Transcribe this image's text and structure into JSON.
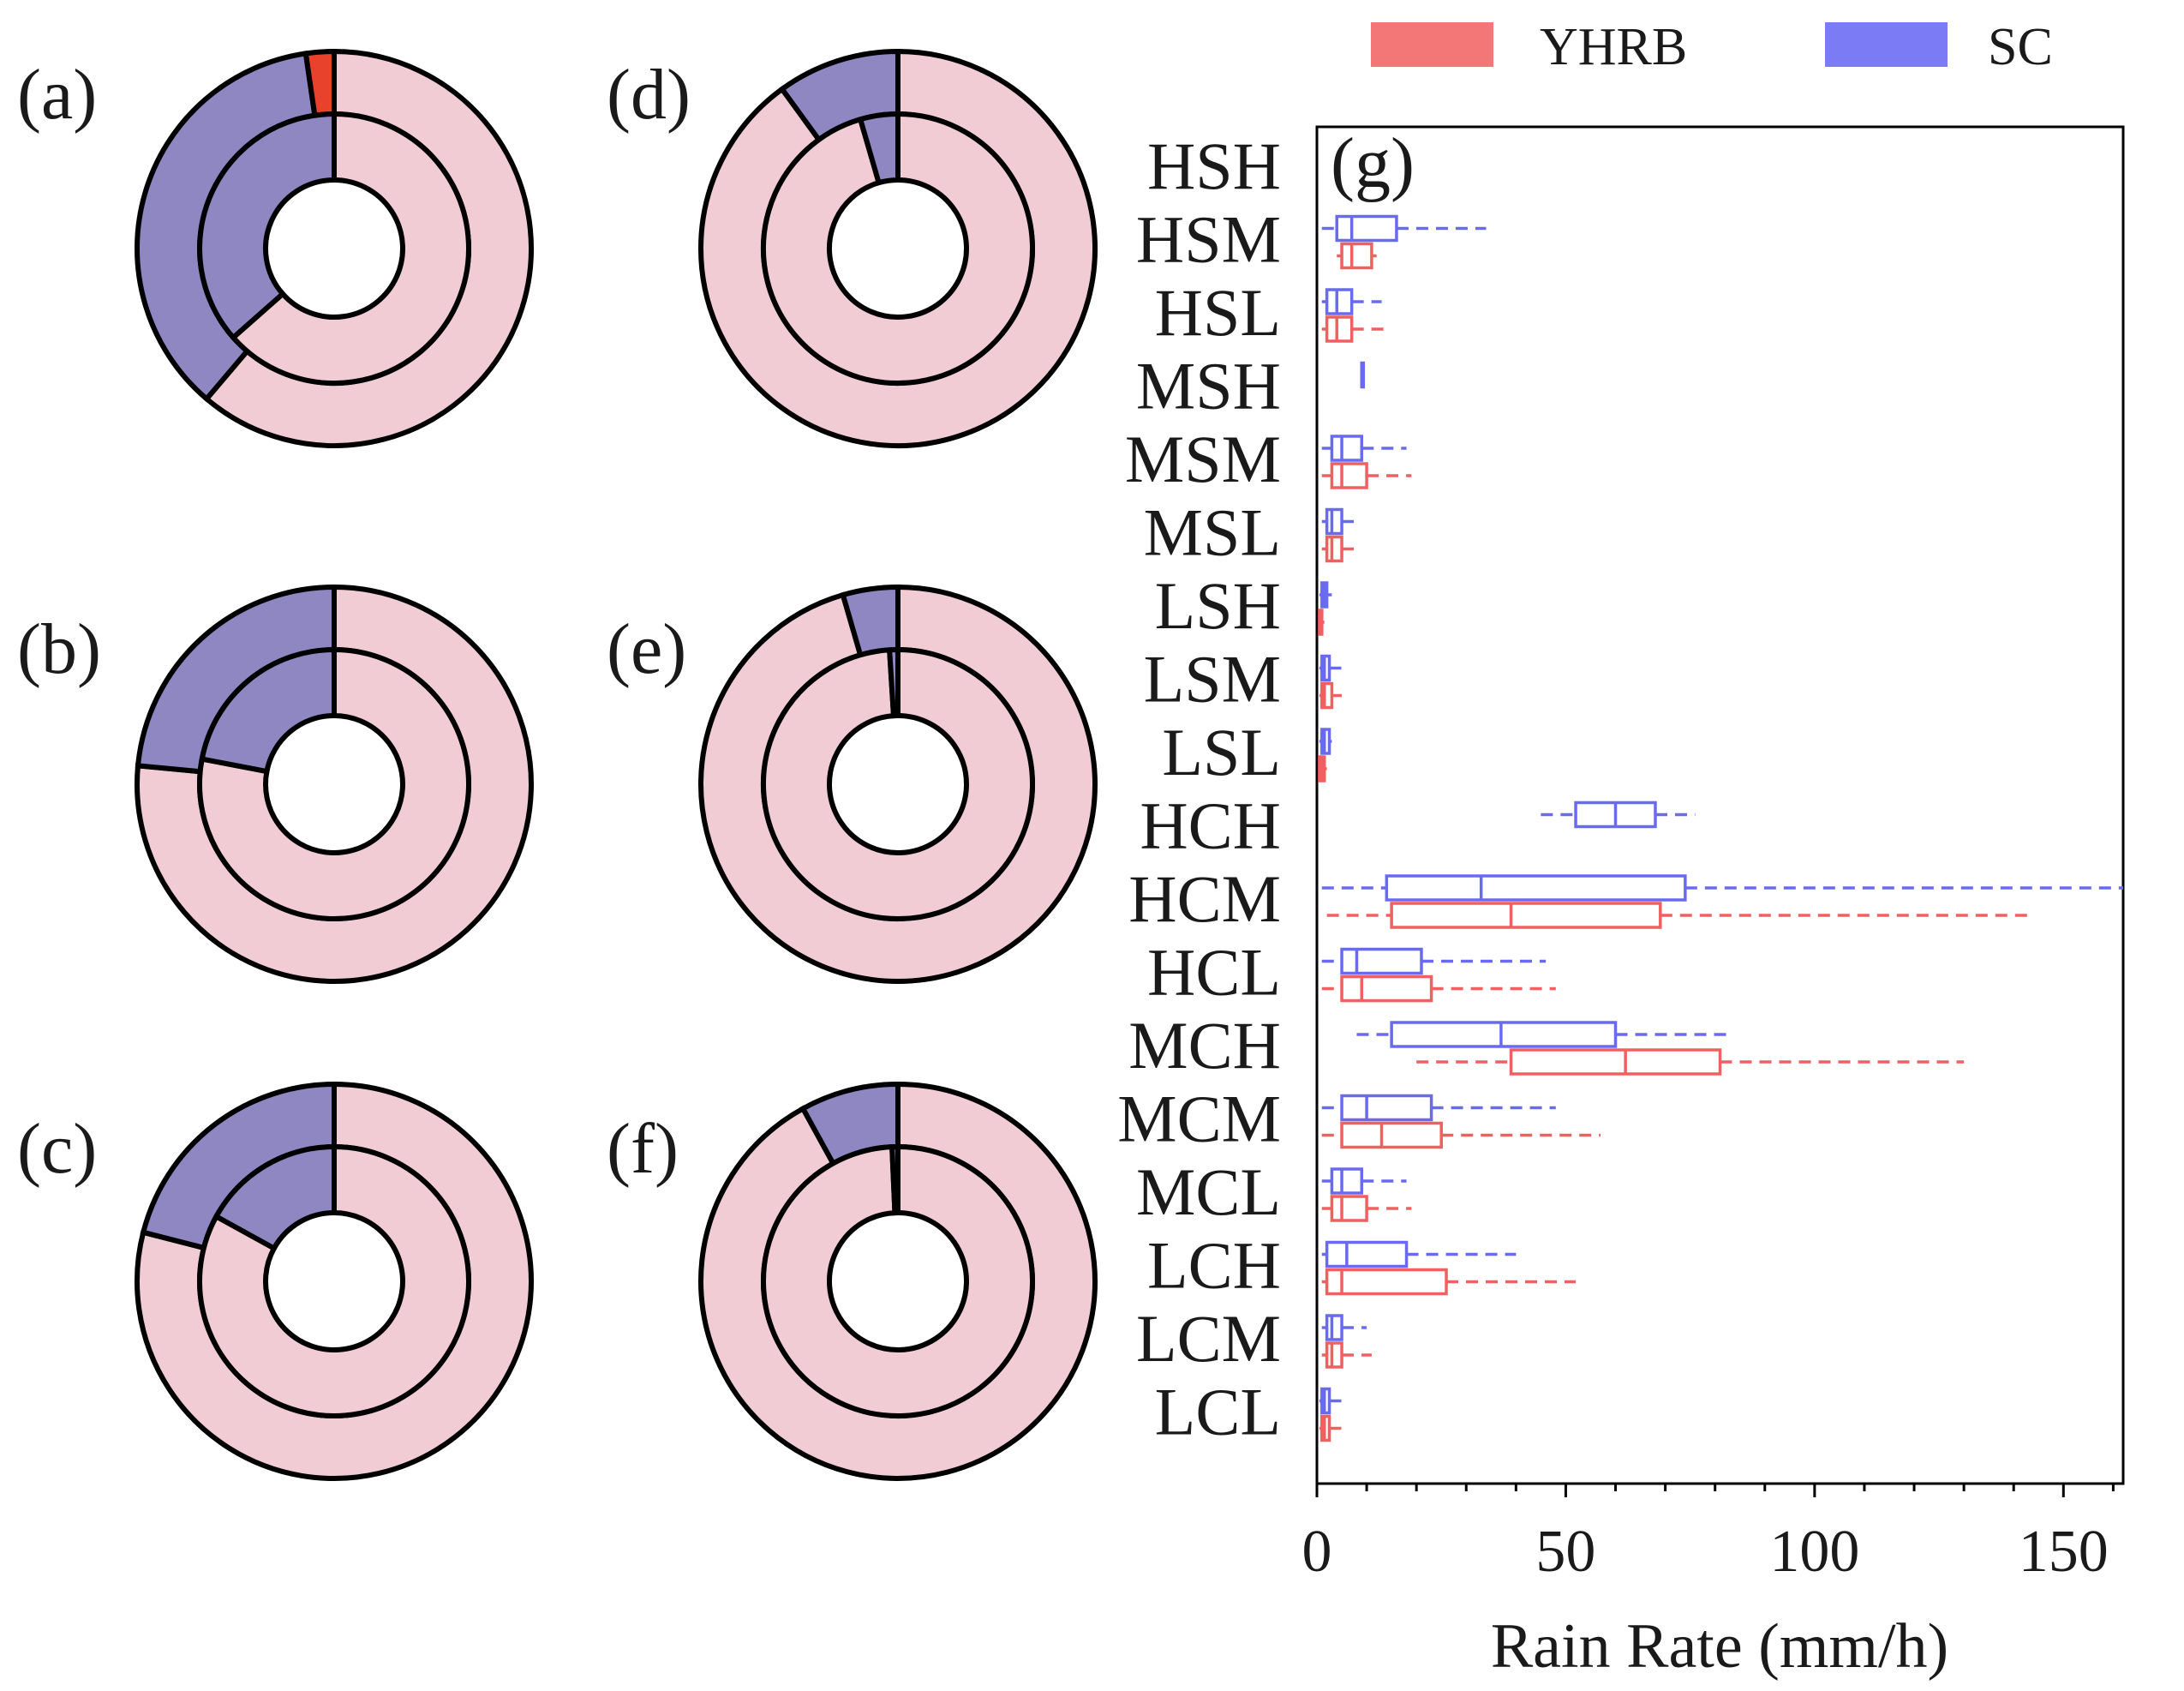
{
  "colors": {
    "yhrb_edge": "#f06060",
    "sc_edge": "#6a6af0",
    "yhrb_legend": "#f47777",
    "sc_legend": "#7b7cf5",
    "ring_pink": "#f1ccd5",
    "ring_purple": "#8e87c2",
    "ring_red": "#e8412c",
    "edge_black": "#000000"
  },
  "legend": [
    {
      "label": "YHRB",
      "color": "#f47777"
    },
    {
      "label": "SC",
      "color": "#7b7cf5"
    }
  ],
  "chart_data": [
    {
      "type": "pie",
      "panel": "(a)",
      "rings": [
        {
          "ring": "outer",
          "slices": [
            {
              "name": "pink",
              "value": 0.612,
              "color": "#f1ccd5"
            },
            {
              "name": "purple",
              "value": 0.365,
              "color": "#8e87c2"
            },
            {
              "name": "red",
              "value": 0.023,
              "color": "#e8412c"
            }
          ]
        },
        {
          "ring": "inner",
          "slices": [
            {
              "name": "pink",
              "value": 0.635,
              "color": "#f1ccd5"
            },
            {
              "name": "purple",
              "value": 0.365,
              "color": "#8e87c2"
            }
          ]
        }
      ]
    },
    {
      "type": "pie",
      "panel": "(b)",
      "rings": [
        {
          "ring": "outer",
          "slices": [
            {
              "name": "pink",
              "value": 0.765,
              "color": "#f1ccd5"
            },
            {
              "name": "purple",
              "value": 0.235,
              "color": "#8e87c2"
            }
          ]
        },
        {
          "ring": "inner",
          "slices": [
            {
              "name": "pink",
              "value": 0.78,
              "color": "#f1ccd5"
            },
            {
              "name": "purple",
              "value": 0.22,
              "color": "#8e87c2"
            }
          ]
        }
      ]
    },
    {
      "type": "pie",
      "panel": "(c)",
      "rings": [
        {
          "ring": "outer",
          "slices": [
            {
              "name": "pink",
              "value": 0.79,
              "color": "#f1ccd5"
            },
            {
              "name": "purple",
              "value": 0.21,
              "color": "#8e87c2"
            }
          ]
        },
        {
          "ring": "inner",
          "slices": [
            {
              "name": "pink",
              "value": 0.83,
              "color": "#f1ccd5"
            },
            {
              "name": "purple",
              "value": 0.17,
              "color": "#8e87c2"
            }
          ]
        }
      ]
    },
    {
      "type": "pie",
      "panel": "(d)",
      "rings": [
        {
          "ring": "outer",
          "slices": [
            {
              "name": "pink",
              "value": 0.9,
              "color": "#f1ccd5"
            },
            {
              "name": "purple",
              "value": 0.1,
              "color": "#8e87c2"
            }
          ]
        },
        {
          "ring": "inner",
          "slices": [
            {
              "name": "pink",
              "value": 0.955,
              "color": "#f1ccd5"
            },
            {
              "name": "purple",
              "value": 0.045,
              "color": "#8e87c2"
            }
          ]
        }
      ]
    },
    {
      "type": "pie",
      "panel": "(e)",
      "rings": [
        {
          "ring": "outer",
          "slices": [
            {
              "name": "pink",
              "value": 0.955,
              "color": "#f1ccd5"
            },
            {
              "name": "purple",
              "value": 0.045,
              "color": "#8e87c2"
            }
          ]
        },
        {
          "ring": "inner",
          "slices": [
            {
              "name": "pink",
              "value": 0.99,
              "color": "#f1ccd5"
            },
            {
              "name": "purple",
              "value": 0.01,
              "color": "#8e87c2"
            }
          ]
        }
      ]
    },
    {
      "type": "pie",
      "panel": "(f)",
      "rings": [
        {
          "ring": "outer",
          "slices": [
            {
              "name": "pink",
              "value": 0.92,
              "color": "#f1ccd5"
            },
            {
              "name": "purple",
              "value": 0.08,
              "color": "#8e87c2"
            }
          ]
        },
        {
          "ring": "inner",
          "slices": [
            {
              "name": "pink",
              "value": 0.993,
              "color": "#f1ccd5"
            },
            {
              "name": "purple",
              "value": 0.007,
              "color": "#8e87c2"
            }
          ]
        }
      ]
    },
    {
      "type": "boxplot",
      "panel": "(g)",
      "orientation": "horizontal",
      "xlabel": "Rain Rate (mm/h)",
      "xlim": [
        0,
        162
      ],
      "xticks": [
        0,
        50,
        100,
        150
      ],
      "xtick_labels": [
        "0",
        "50",
        "100",
        "150"
      ],
      "categories": [
        "HSH",
        "HSM",
        "HSL",
        "MSH",
        "MSM",
        "MSL",
        "LSH",
        "LSM",
        "LSL",
        "HCH",
        "HCM",
        "HCL",
        "MCH",
        "MCM",
        "MCL",
        "LCH",
        "LCM",
        "LCL"
      ],
      "series": [
        {
          "name": "SC",
          "color": "#6a6af0",
          "boxes": [
            null,
            {
              "whislo": 1,
              "q1": 4,
              "med": 7,
              "q3": 16,
              "whishi": 34
            },
            {
              "whislo": 1,
              "q1": 2,
              "med": 4,
              "q3": 7,
              "whishi": 13
            },
            {
              "whislo": 9,
              "q1": 9,
              "med": 9,
              "q3": 9,
              "whishi": 9
            },
            {
              "whislo": 1,
              "q1": 3,
              "med": 5,
              "q3": 9,
              "whishi": 18
            },
            {
              "whislo": 1,
              "q1": 2,
              "med": 3,
              "q3": 5,
              "whishi": 8
            },
            {
              "whislo": 0.5,
              "q1": 1,
              "med": 1.5,
              "q3": 2,
              "whishi": 3
            },
            {
              "whislo": 0.5,
              "q1": 1,
              "med": 1.5,
              "q3": 2.5,
              "whishi": 5
            },
            {
              "whislo": 0.5,
              "q1": 1,
              "med": 1.5,
              "q3": 2.5,
              "whishi": 3
            },
            {
              "whislo": 45,
              "q1": 52,
              "med": 60,
              "q3": 68,
              "whishi": 76
            },
            {
              "whislo": 1,
              "q1": 14,
              "med": 33,
              "q3": 74,
              "whishi": 162
            },
            {
              "whislo": 1,
              "q1": 5,
              "med": 8,
              "q3": 21,
              "whishi": 46
            },
            {
              "whislo": 8,
              "q1": 15,
              "med": 37,
              "q3": 60,
              "whishi": 83
            },
            {
              "whislo": 1,
              "q1": 5,
              "med": 10,
              "q3": 23,
              "whishi": 48
            },
            {
              "whislo": 1,
              "q1": 3,
              "med": 5,
              "q3": 9,
              "whishi": 18
            },
            {
              "whislo": 1,
              "q1": 2,
              "med": 6,
              "q3": 18,
              "whishi": 40
            },
            {
              "whislo": 1,
              "q1": 2,
              "med": 3,
              "q3": 5,
              "whishi": 10
            },
            {
              "whislo": 0.5,
              "q1": 1,
              "med": 1.5,
              "q3": 2.5,
              "whishi": 5
            }
          ]
        },
        {
          "name": "YHRB",
          "color": "#f06060",
          "boxes": [
            null,
            {
              "whislo": 4,
              "q1": 5,
              "med": 7,
              "q3": 11,
              "whishi": 12
            },
            {
              "whislo": 1,
              "q1": 2,
              "med": 4,
              "q3": 7,
              "whishi": 14
            },
            null,
            {
              "whislo": 1,
              "q1": 3,
              "med": 5,
              "q3": 10,
              "whishi": 19
            },
            {
              "whislo": 1,
              "q1": 2,
              "med": 3,
              "q3": 5,
              "whishi": 8
            },
            {
              "whislo": 0.3,
              "q1": 0.5,
              "med": 0.8,
              "q3": 1,
              "whishi": 1.5
            },
            {
              "whislo": 0.5,
              "q1": 1,
              "med": 1.5,
              "q3": 3,
              "whishi": 5
            },
            {
              "whislo": 0.3,
              "q1": 0.5,
              "med": 1,
              "q3": 1.5,
              "whishi": 2
            },
            null,
            {
              "whislo": 2,
              "q1": 15,
              "med": 39,
              "q3": 69,
              "whishi": 144
            },
            {
              "whislo": 1,
              "q1": 5,
              "med": 9,
              "q3": 23,
              "whishi": 48
            },
            {
              "whislo": 20,
              "q1": 39,
              "med": 62,
              "q3": 81,
              "whishi": 130
            },
            {
              "whislo": 1,
              "q1": 5,
              "med": 13,
              "q3": 25,
              "whishi": 57
            },
            {
              "whislo": 1,
              "q1": 3,
              "med": 5,
              "q3": 10,
              "whishi": 19
            },
            {
              "whislo": 1,
              "q1": 2,
              "med": 5,
              "q3": 26,
              "whishi": 52
            },
            {
              "whislo": 1,
              "q1": 2,
              "med": 3,
              "q3": 5,
              "whishi": 11
            },
            {
              "whislo": 0.5,
              "q1": 1,
              "med": 1.5,
              "q3": 2.5,
              "whishi": 5
            }
          ]
        }
      ]
    }
  ]
}
